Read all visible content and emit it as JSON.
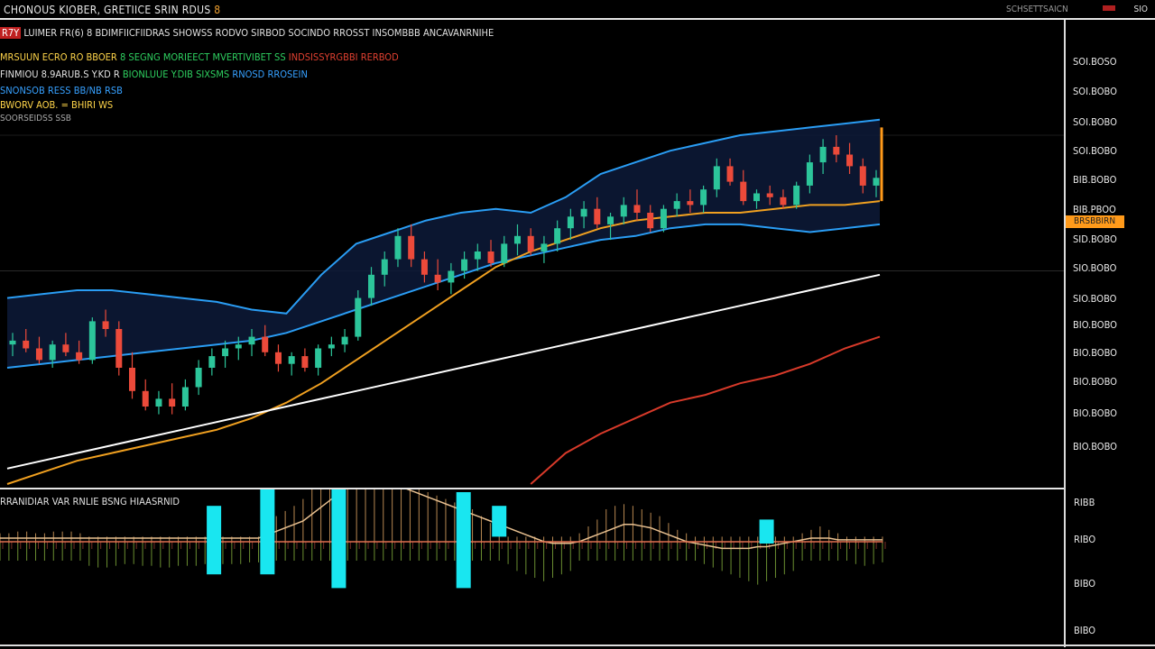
{
  "window": {
    "title_a": "CHONOUS KIOBER, GRETIICE SRIN RDUS",
    "title_b": "8",
    "symbol": "SCHSETTSAICN",
    "right_label": "SIO"
  },
  "legends": {
    "line1": {
      "tag": "R7Y",
      "text": "LUIMER FR(6) 8 BDIMFIICFIIDRAS SHOWSS RODVO SIRBOD SOCINDO RROSST INSOMBBB ANCAVANRNIHE",
      "color": "#e0e0e0"
    },
    "line2": {
      "a": "MRSUUN ECRO RO BBOER",
      "b": "8 SEGNG MORIEECT MVERTIVIBET SS",
      "c": "INDSISSYRGBBI RERBOD",
      "color_a": "#ffd54a",
      "color_b": "#2ed060",
      "color_c": "#e04030"
    },
    "line3": {
      "a": "FINMIOU 8.9ARUB.S Y.KD R",
      "b": "BIONLUUE Y.DIB",
      "c": "SIXSMS",
      "d": "RNOSD",
      "e": "RROSEIN",
      "color_a": "#e0e0e0",
      "color_b": "#2ed060",
      "color_c": "#2ed060",
      "color_d": "#36a0ff",
      "color_e": "#36a0ff"
    },
    "line4": {
      "text": "SNONSOB RESS BB/NB RSB",
      "color": "#36a0ff"
    },
    "line5": {
      "text": "BWORV AOB. = BHIRI WS",
      "color": "#ffd54a"
    },
    "line6": {
      "text": "SOORSEIDSS SSB",
      "color": "#aaaaaa"
    },
    "sub_legend": {
      "text": "RRANIDIAR VAR RNLIE BSNG HIAASRNID",
      "color": "#e0e0e0"
    }
  },
  "chart_data": [
    {
      "type": "candlestick",
      "title": "",
      "y_axis_labels": [
        "SOI.BOSO",
        "SOI.BOBO",
        "SOI.BOBO",
        "SOI.BOBO",
        "BIB.BOBO",
        "BIB.PBOO",
        "SID.BOBO",
        "SIO.BOBO",
        "SIO.BOBO",
        "BIO.BOBO",
        "BIO.BOBO",
        "BIO.BOBO",
        "BIO.BOBO",
        "BIO.BOBO"
      ],
      "current_price_tag": "BRSBBIRN",
      "ylim": [
        0,
        100
      ],
      "candles": [
        {
          "o": 36,
          "h": 39,
          "l": 33,
          "c": 37
        },
        {
          "o": 37,
          "h": 40,
          "l": 34,
          "c": 35
        },
        {
          "o": 35,
          "h": 38,
          "l": 31,
          "c": 32
        },
        {
          "o": 32,
          "h": 37,
          "l": 30,
          "c": 36
        },
        {
          "o": 36,
          "h": 39,
          "l": 33,
          "c": 34
        },
        {
          "o": 34,
          "h": 37,
          "l": 31,
          "c": 32
        },
        {
          "o": 32,
          "h": 43,
          "l": 31,
          "c": 42
        },
        {
          "o": 42,
          "h": 45,
          "l": 38,
          "c": 40
        },
        {
          "o": 40,
          "h": 42,
          "l": 28,
          "c": 30
        },
        {
          "o": 30,
          "h": 34,
          "l": 22,
          "c": 24
        },
        {
          "o": 24,
          "h": 27,
          "l": 19,
          "c": 20
        },
        {
          "o": 20,
          "h": 24,
          "l": 18,
          "c": 22
        },
        {
          "o": 22,
          "h": 26,
          "l": 18,
          "c": 20
        },
        {
          "o": 20,
          "h": 27,
          "l": 19,
          "c": 25
        },
        {
          "o": 25,
          "h": 32,
          "l": 23,
          "c": 30
        },
        {
          "o": 30,
          "h": 35,
          "l": 28,
          "c": 33
        },
        {
          "o": 33,
          "h": 37,
          "l": 30,
          "c": 35
        },
        {
          "o": 35,
          "h": 38,
          "l": 32,
          "c": 36
        },
        {
          "o": 36,
          "h": 40,
          "l": 33,
          "c": 38
        },
        {
          "o": 38,
          "h": 41,
          "l": 33,
          "c": 34
        },
        {
          "o": 34,
          "h": 36,
          "l": 29,
          "c": 31
        },
        {
          "o": 31,
          "h": 34,
          "l": 28,
          "c": 33
        },
        {
          "o": 33,
          "h": 35,
          "l": 29,
          "c": 30
        },
        {
          "o": 30,
          "h": 36,
          "l": 28,
          "c": 35
        },
        {
          "o": 35,
          "h": 38,
          "l": 33,
          "c": 36
        },
        {
          "o": 36,
          "h": 40,
          "l": 34,
          "c": 38
        },
        {
          "o": 38,
          "h": 50,
          "l": 37,
          "c": 48
        },
        {
          "o": 48,
          "h": 56,
          "l": 46,
          "c": 54
        },
        {
          "o": 54,
          "h": 60,
          "l": 51,
          "c": 58
        },
        {
          "o": 58,
          "h": 66,
          "l": 56,
          "c": 64
        },
        {
          "o": 64,
          "h": 67,
          "l": 56,
          "c": 58
        },
        {
          "o": 58,
          "h": 60,
          "l": 52,
          "c": 54
        },
        {
          "o": 54,
          "h": 58,
          "l": 50,
          "c": 52
        },
        {
          "o": 52,
          "h": 57,
          "l": 49,
          "c": 55
        },
        {
          "o": 55,
          "h": 60,
          "l": 53,
          "c": 58
        },
        {
          "o": 58,
          "h": 62,
          "l": 55,
          "c": 60
        },
        {
          "o": 60,
          "h": 63,
          "l": 56,
          "c": 57
        },
        {
          "o": 57,
          "h": 64,
          "l": 56,
          "c": 62
        },
        {
          "o": 62,
          "h": 67,
          "l": 59,
          "c": 64
        },
        {
          "o": 64,
          "h": 66,
          "l": 59,
          "c": 60
        },
        {
          "o": 60,
          "h": 64,
          "l": 57,
          "c": 62
        },
        {
          "o": 62,
          "h": 68,
          "l": 60,
          "c": 66
        },
        {
          "o": 66,
          "h": 71,
          "l": 63,
          "c": 69
        },
        {
          "o": 69,
          "h": 73,
          "l": 66,
          "c": 71
        },
        {
          "o": 71,
          "h": 74,
          "l": 66,
          "c": 67
        },
        {
          "o": 67,
          "h": 70,
          "l": 63,
          "c": 69
        },
        {
          "o": 69,
          "h": 74,
          "l": 67,
          "c": 72
        },
        {
          "o": 72,
          "h": 76,
          "l": 68,
          "c": 70
        },
        {
          "o": 70,
          "h": 72,
          "l": 65,
          "c": 66
        },
        {
          "o": 66,
          "h": 72,
          "l": 65,
          "c": 71
        },
        {
          "o": 71,
          "h": 75,
          "l": 69,
          "c": 73
        },
        {
          "o": 73,
          "h": 76,
          "l": 70,
          "c": 72
        },
        {
          "o": 72,
          "h": 77,
          "l": 70,
          "c": 76
        },
        {
          "o": 76,
          "h": 84,
          "l": 74,
          "c": 82
        },
        {
          "o": 82,
          "h": 84,
          "l": 77,
          "c": 78
        },
        {
          "o": 78,
          "h": 81,
          "l": 72,
          "c": 73
        },
        {
          "o": 73,
          "h": 76,
          "l": 71,
          "c": 75
        },
        {
          "o": 75,
          "h": 77,
          "l": 72,
          "c": 74
        },
        {
          "o": 74,
          "h": 76,
          "l": 71,
          "c": 72
        },
        {
          "o": 72,
          "h": 78,
          "l": 71,
          "c": 77
        },
        {
          "o": 77,
          "h": 85,
          "l": 75,
          "c": 83
        },
        {
          "o": 83,
          "h": 89,
          "l": 80,
          "c": 87
        },
        {
          "o": 87,
          "h": 90,
          "l": 83,
          "c": 85
        },
        {
          "o": 85,
          "h": 88,
          "l": 80,
          "c": 82
        },
        {
          "o": 82,
          "h": 84,
          "l": 75,
          "c": 77
        },
        {
          "o": 77,
          "h": 81,
          "l": 74,
          "c": 79
        }
      ],
      "overlays": [
        {
          "name": "",
          "color": "#2a9df4",
          "values": [
            48,
            49,
            50,
            50,
            49,
            48,
            47,
            45,
            44,
            54,
            62,
            65,
            68,
            70,
            71,
            70,
            74,
            80,
            83,
            86,
            88,
            90,
            91,
            92,
            93,
            94
          ]
        },
        {
          "name": "",
          "color": "#2a9df4",
          "values": [
            30,
            31,
            32,
            33,
            34,
            35,
            36,
            37,
            39,
            42,
            45,
            48,
            51,
            54,
            57,
            59,
            61,
            63,
            64,
            66,
            67,
            67,
            66,
            65,
            66,
            67
          ]
        },
        {
          "name": "",
          "color": "#f0a020",
          "values": [
            0,
            3,
            6,
            8,
            10,
            12,
            14,
            17,
            21,
            26,
            32,
            38,
            44,
            50,
            56,
            60,
            63,
            66,
            68,
            69,
            70,
            70,
            71,
            72,
            72,
            73
          ]
        },
        {
          "name": "",
          "color": "#ffffff",
          "values": [
            4,
            6,
            8,
            10,
            12,
            14,
            16,
            18,
            20,
            22,
            24,
            26,
            28,
            30,
            32,
            34,
            36,
            38,
            40,
            42,
            44,
            46,
            48,
            50,
            52,
            54
          ]
        },
        {
          "name": "",
          "color": "#d83a2a",
          "values": [
            null,
            null,
            null,
            null,
            null,
            null,
            null,
            null,
            null,
            null,
            null,
            null,
            null,
            null,
            null,
            0,
            8,
            13,
            17,
            21,
            23,
            26,
            28,
            31,
            35,
            38
          ]
        }
      ]
    },
    {
      "type": "histogram",
      "title": "",
      "y_axis_labels": [
        "RIBB",
        "RIBO",
        "BIBO",
        "BIBO"
      ],
      "values": [
        2,
        2,
        3,
        3,
        2,
        2,
        3,
        3,
        3,
        2,
        -3,
        -4,
        -4,
        -3,
        -2,
        -2,
        -3,
        -3,
        -4,
        -4,
        -3,
        -3,
        -3,
        -2,
        -2,
        -2,
        -2,
        -2,
        -1,
        -1,
        10,
        12,
        15,
        18,
        22,
        28,
        32,
        36,
        42,
        46,
        50,
        48,
        44,
        40,
        36,
        34,
        30,
        28,
        26,
        24,
        22,
        20,
        18,
        16,
        12,
        8,
        4,
        -2,
        -6,
        -8,
        -10,
        -12,
        -10,
        -8,
        -6,
        2,
        6,
        10,
        16,
        18,
        19,
        18,
        16,
        14,
        12,
        8,
        4,
        2,
        0,
        -2,
        -4,
        -6,
        -8,
        -10,
        -12,
        -14,
        -12,
        -10,
        -8,
        -6,
        2,
        4,
        6,
        4,
        2,
        0,
        -2,
        -3,
        -2,
        -1
      ],
      "signal": [
        0,
        0,
        0,
        0,
        0,
        0,
        0,
        0,
        0,
        0,
        0,
        0,
        0,
        0,
        0,
        0,
        0,
        0,
        0,
        0,
        0,
        0,
        0,
        0,
        0,
        0,
        0,
        0,
        0,
        0,
        2,
        4,
        6,
        8,
        10,
        14,
        18,
        22,
        26,
        30,
        34,
        36,
        36,
        34,
        32,
        30,
        28,
        26,
        24,
        22,
        20,
        18,
        16,
        14,
        12,
        10,
        8,
        6,
        4,
        2,
        0,
        -2,
        -3,
        -3,
        -3,
        -2,
        0,
        2,
        4,
        6,
        8,
        8,
        7,
        6,
        4,
        2,
        0,
        -2,
        -3,
        -4,
        -5,
        -6,
        -6,
        -6,
        -6,
        -5,
        -5,
        -4,
        -3,
        -2,
        -1,
        0,
        0,
        0,
        -1,
        -1,
        -1,
        -1,
        -1,
        -1
      ],
      "highlight_bars": [
        {
          "index": 12,
          "top": 22,
          "bottom": -18
        },
        {
          "index": 15,
          "top": 36,
          "bottom": -18
        },
        {
          "index": 19,
          "top": 50,
          "bottom": -26
        },
        {
          "index": 26,
          "top": 30,
          "bottom": -26
        },
        {
          "index": 28,
          "top": 22,
          "bottom": 4
        },
        {
          "index": 43,
          "top": 14,
          "bottom": 0
        }
      ]
    }
  ]
}
